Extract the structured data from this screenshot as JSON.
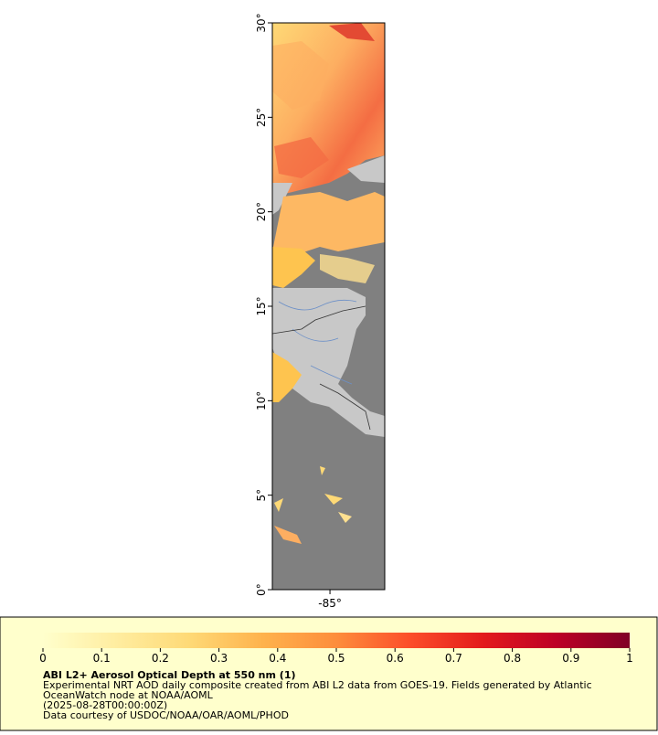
{
  "map": {
    "xlim": [
      -88.05,
      -82.1
    ],
    "ylim": [
      0,
      30
    ],
    "xticks": [
      {
        "value": -85,
        "label": "-85°"
      }
    ],
    "yticks": [
      {
        "value": 0,
        "label": "0°"
      },
      {
        "value": 5,
        "label": "5°"
      },
      {
        "value": 10,
        "label": "10°"
      },
      {
        "value": 15,
        "label": "15°"
      },
      {
        "value": 20,
        "label": "20°"
      },
      {
        "value": 25,
        "label": "25°"
      },
      {
        "value": 30,
        "label": "30°"
      }
    ]
  },
  "colorbar": {
    "lim": [
      0,
      1
    ],
    "ticks": [
      0,
      0.1,
      0.2,
      0.3,
      0.4,
      0.5,
      0.6,
      0.7,
      0.8,
      0.9,
      1
    ],
    "colors": [
      "#ffffcc",
      "#ffeda0",
      "#fed976",
      "#feb24c",
      "#fd8d3c",
      "#fc4e2a",
      "#e31a1c",
      "#bd0026",
      "#800026"
    ]
  },
  "legend": {
    "title": "ABI L2+ Aerosol Optical Depth at 550 nm (1)",
    "lines": [
      "Experimental NRT AOD daily composite created from ABI L2 data from GOES-19. Fields generated by Atlantic",
      "OceanWatch node at NOAA/AOML",
      "(2025-08-28T00:00:00Z)",
      "Data courtesy of USDOC/NOAA/OAR/AOML/PHOD"
    ]
  }
}
